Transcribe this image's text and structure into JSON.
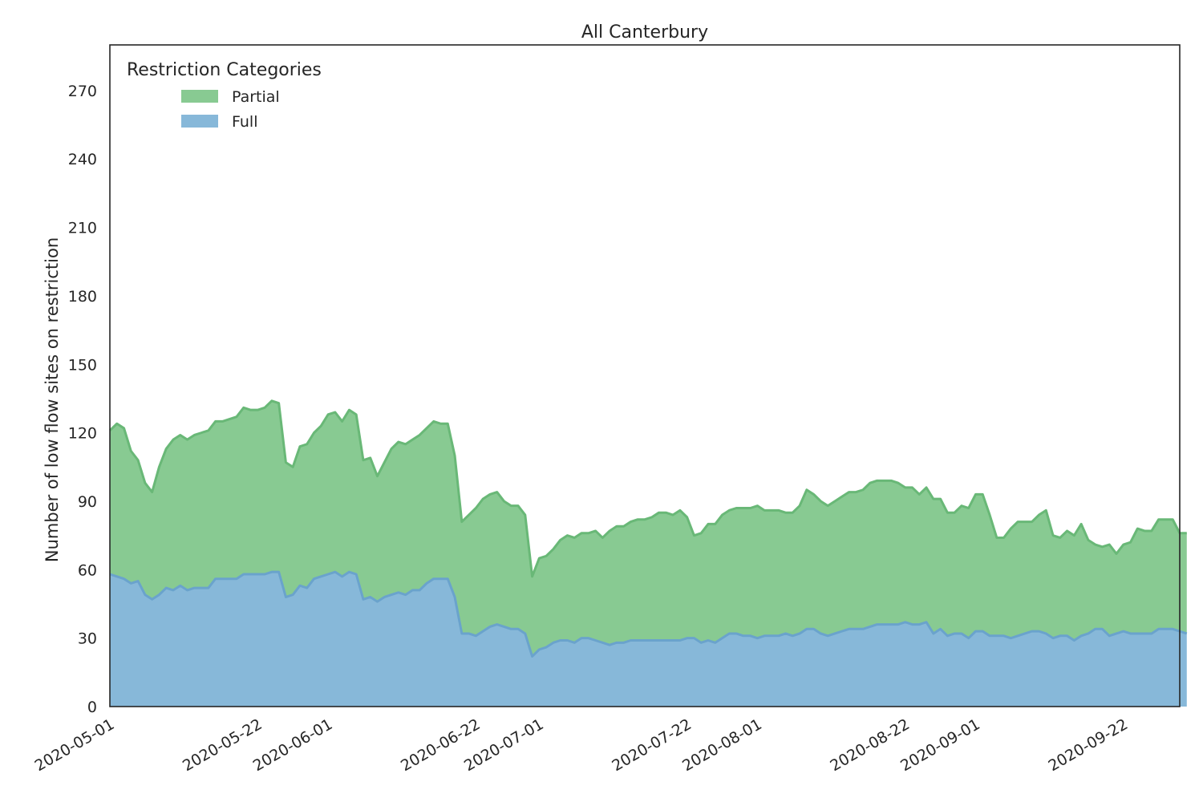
{
  "chart_data": {
    "type": "area",
    "stacked": true,
    "title": "All Canterbury",
    "xlabel": "",
    "ylabel": "Number of low flow sites on restriction",
    "x_start": "2020-05-01",
    "x_end": "2020-09-30",
    "ylim": [
      0,
      290
    ],
    "y_ticks": [
      0,
      30,
      60,
      90,
      120,
      150,
      180,
      210,
      240,
      270
    ],
    "x_ticks": [
      "2020-05-01",
      "2020-05-22",
      "2020-06-01",
      "2020-06-22",
      "2020-07-01",
      "2020-07-22",
      "2020-08-01",
      "2020-08-22",
      "2020-09-01",
      "2020-09-22"
    ],
    "grid": false,
    "legend": {
      "title": "Restriction Categories",
      "placement": "top-left"
    },
    "series": [
      {
        "name": "Full",
        "color": "#87b8d9",
        "line_color": "#6aa3cc",
        "values": [
          58,
          57,
          56,
          54,
          55,
          49,
          47,
          49,
          52,
          51,
          53,
          51,
          52,
          52,
          52,
          56,
          56,
          56,
          56,
          58,
          58,
          58,
          58,
          59,
          59,
          48,
          49,
          53,
          52,
          56,
          57,
          58,
          59,
          57,
          59,
          58,
          47,
          48,
          46,
          48,
          49,
          50,
          49,
          51,
          51,
          54,
          56,
          56,
          56,
          48,
          32,
          32,
          31,
          33,
          35,
          36,
          35,
          34,
          34,
          32,
          22,
          25,
          26,
          28,
          29,
          29,
          28,
          30,
          30,
          29,
          28,
          27,
          28,
          28,
          29,
          29,
          29,
          29,
          29,
          29,
          29,
          29,
          30,
          30,
          28,
          29,
          28,
          30,
          32,
          32,
          31,
          31,
          30,
          31,
          31,
          31,
          32,
          31,
          32,
          34,
          34,
          32,
          31,
          32,
          33,
          34,
          34,
          34,
          35,
          36,
          36,
          36,
          36,
          37,
          36,
          36,
          37,
          32,
          34,
          31,
          32,
          32,
          30,
          33,
          33,
          31,
          31,
          31,
          30,
          31,
          32,
          33,
          33,
          32,
          30,
          31,
          31,
          29,
          31,
          32,
          34,
          34,
          31,
          32,
          33,
          32,
          32,
          32,
          32,
          34,
          34,
          34,
          33,
          32
        ]
      },
      {
        "name": "Partial",
        "color": "#88ca92",
        "line_color": "#69b877",
        "values": [
          63,
          67,
          66,
          58,
          53,
          49,
          47,
          56,
          61,
          66,
          66,
          66,
          67,
          68,
          69,
          69,
          69,
          70,
          71,
          73,
          72,
          72,
          73,
          75,
          74,
          59,
          56,
          61,
          63,
          64,
          66,
          70,
          70,
          68,
          71,
          70,
          61,
          61,
          55,
          59,
          64,
          66,
          66,
          66,
          68,
          68,
          69,
          68,
          68,
          62,
          49,
          52,
          56,
          58,
          58,
          58,
          55,
          54,
          54,
          52,
          35,
          40,
          40,
          41,
          44,
          46,
          46,
          46,
          46,
          48,
          46,
          50,
          51,
          51,
          52,
          53,
          53,
          54,
          56,
          56,
          55,
          57,
          53,
          45,
          48,
          51,
          52,
          54,
          54,
          55,
          56,
          56,
          58,
          55,
          55,
          55,
          53,
          54,
          56,
          61,
          59,
          58,
          57,
          58,
          59,
          60,
          60,
          61,
          63,
          63,
          63,
          63,
          62,
          59,
          60,
          57,
          59,
          59,
          57,
          54,
          53,
          56,
          57,
          60,
          60,
          53,
          43,
          43,
          48,
          50,
          49,
          48,
          51,
          54,
          45,
          43,
          46,
          46,
          49,
          41,
          37,
          36,
          40,
          35,
          38,
          40,
          46,
          45,
          45,
          48,
          48,
          48,
          43,
          44
        ]
      }
    ]
  }
}
